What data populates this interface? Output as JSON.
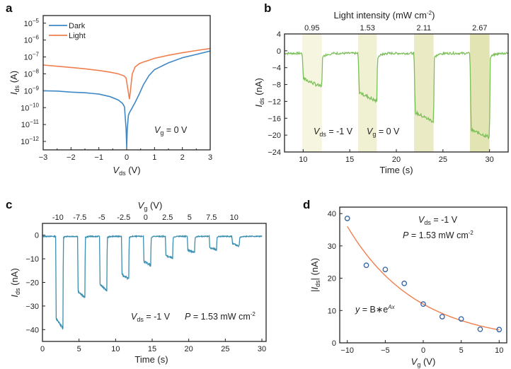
{
  "chart_data": [
    {
      "panel": "a",
      "type": "line",
      "xlabel": "V_ds (V)",
      "ylabel": "I_ds (A)",
      "yscale": "log",
      "xlim": [
        -3,
        3
      ],
      "ylim_exp": [
        -12.5,
        -4.55
      ],
      "xticks": [
        -3,
        -2,
        -1,
        0,
        1,
        2,
        3
      ],
      "yticks_exp": [
        -12,
        -11,
        -10,
        -9,
        -8,
        -7,
        -6,
        -5
      ],
      "legend": {
        "placement": "top-left",
        "entries": [
          "Dark",
          "Light"
        ]
      },
      "annotation": {
        "var": "V",
        "sub": "g",
        "rest": " = 0 V"
      },
      "series": [
        {
          "name": "Dark",
          "color": "#3f88c5",
          "x": [
            -3,
            -2.5,
            -2,
            -1.5,
            -1,
            -0.6,
            -0.3,
            -0.15,
            -0.08,
            -0.02,
            0,
            0.02,
            0.06,
            0.1,
            0.2,
            0.3,
            0.45,
            0.6,
            0.8,
            1,
            1.5,
            2,
            2.5,
            3
          ],
          "log10y": [
            -9.0,
            -9.02,
            -9.08,
            -9.12,
            -9.2,
            -9.35,
            -9.55,
            -9.75,
            -9.95,
            -11.3,
            -12.4,
            -11.3,
            -10.45,
            -10.3,
            -10.0,
            -9.7,
            -9.2,
            -8.65,
            -8.1,
            -7.75,
            -7.35,
            -7.05,
            -6.85,
            -6.65
          ]
        },
        {
          "name": "Light",
          "color": "#f07f4f",
          "x": [
            -3,
            -2.5,
            -2,
            -1.5,
            -1,
            -0.6,
            -0.3,
            -0.1,
            -0.02,
            0.04,
            0.1,
            0.14,
            0.2,
            0.3,
            0.45,
            0.6,
            0.8,
            1,
            1.5,
            2,
            2.5,
            3
          ],
          "log10y": [
            -7.48,
            -7.55,
            -7.62,
            -7.7,
            -7.8,
            -7.9,
            -8.0,
            -8.12,
            -8.25,
            -8.9,
            -9.5,
            -8.9,
            -8.0,
            -7.6,
            -7.4,
            -7.3,
            -7.2,
            -7.08,
            -6.9,
            -6.75,
            -6.62,
            -6.5
          ]
        }
      ]
    },
    {
      "panel": "b",
      "type": "line",
      "title": "Light intensity (mW cm⁻²)",
      "xlabel": "Time (s)",
      "ylabel": "I_ds (nA)",
      "xlim": [
        8,
        32
      ],
      "ylim": [
        -24,
        4
      ],
      "xticks": [
        10,
        15,
        20,
        25,
        30
      ],
      "yticks": [
        4,
        0,
        -4,
        -8,
        -12,
        -16,
        -20,
        -24
      ],
      "color": "#7cbf5a",
      "baseline": -0.6,
      "pulses": [
        {
          "intensity": "0.95",
          "t_on": 9.9,
          "t_off": 12.0,
          "start": -6.5,
          "end": -8.6,
          "shade": "#f6f5df"
        },
        {
          "intensity": "1.53",
          "t_on": 15.9,
          "t_off": 17.9,
          "start": -9.7,
          "end": -12.0,
          "shade": "#f0f0d2"
        },
        {
          "intensity": "2.11",
          "t_on": 21.9,
          "t_off": 24.0,
          "start": -14.5,
          "end": -16.8,
          "shade": "#eaebc4"
        },
        {
          "intensity": "2.67",
          "t_on": 27.9,
          "t_off": 30.0,
          "start": -18.7,
          "end": -20.5,
          "shade": "#e3e4b4"
        }
      ],
      "annotations": [
        {
          "var": "V",
          "sub": "ds",
          "rest": " = -1 V"
        },
        {
          "var": "V",
          "sub": "g",
          "rest": " = 0 V"
        }
      ]
    },
    {
      "panel": "c",
      "type": "line",
      "top_axis_label": "V_g (V)",
      "top_ticks": [
        "-10",
        "-7.5",
        "-5",
        "-2.5",
        "0",
        "2.5",
        "5",
        "7.5",
        "10"
      ],
      "xlabel": "Time (s)",
      "ylabel": "I_ds (nA)",
      "xlim": [
        0,
        30
      ],
      "ylim": [
        -45,
        5
      ],
      "xticks": [
        0,
        5,
        10,
        15,
        20,
        25,
        30
      ],
      "yticks": [
        0,
        -10,
        -20,
        -30,
        -40
      ],
      "color": "#3b8fb0",
      "baseline": -0.5,
      "pulses": [
        {
          "vg": "-10",
          "t_on": 1.8,
          "t_off": 2.8,
          "start": -35,
          "end": -39.5
        },
        {
          "vg": "-7.5",
          "t_on": 4.8,
          "t_off": 5.8,
          "start": -23.5,
          "end": -26.5
        },
        {
          "vg": "-5",
          "t_on": 7.8,
          "t_off": 8.8,
          "start": -20.5,
          "end": -23.5
        },
        {
          "vg": "-2.5",
          "t_on": 10.8,
          "t_off": 11.8,
          "start": -16.5,
          "end": -18.5
        },
        {
          "vg": "0",
          "t_on": 13.8,
          "t_off": 14.8,
          "start": -11,
          "end": -12.8
        },
        {
          "vg": "2.5",
          "t_on": 16.8,
          "t_off": 17.8,
          "start": -8.5,
          "end": -9.8
        },
        {
          "vg": "5",
          "t_on": 19.8,
          "t_off": 20.8,
          "start": -6.2,
          "end": -7.3
        },
        {
          "vg": "7.5",
          "t_on": 22.8,
          "t_off": 23.8,
          "start": -5.2,
          "end": -6.2
        },
        {
          "vg": "10",
          "t_on": 25.9,
          "t_off": 26.9,
          "start": -3.6,
          "end": -4.6
        }
      ],
      "annotations": [
        {
          "var": "V",
          "sub": "ds",
          "rest": " = -1 V"
        },
        {
          "var": "P",
          "rest": " = 1.53 mW cm",
          "sup": "-2"
        }
      ]
    },
    {
      "panel": "d",
      "type": "scatter",
      "xlabel": "V_g (V)",
      "ylabel": "|I_ds| (nA)",
      "xlim": [
        -11,
        11
      ],
      "ylim": [
        0,
        42
      ],
      "xticks": [
        -10,
        -5,
        0,
        5,
        10
      ],
      "yticks": [
        0,
        10,
        20,
        30,
        40
      ],
      "x": [
        -10,
        -7.5,
        -5,
        -2.5,
        0,
        2.5,
        5,
        7.5,
        10
      ],
      "y": [
        38.5,
        24.0,
        22.7,
        18.4,
        12.0,
        8.1,
        7.4,
        4.2,
        4.1
      ],
      "marker_color": "#2f5fa6",
      "fit": {
        "equation": "y = B*e^(Ax)",
        "B": 12.0,
        "A": -0.11,
        "color": "#f07f4f"
      },
      "annotations": [
        {
          "var": "V",
          "sub": "ds",
          "rest": " = -1 V"
        },
        {
          "var": "P",
          "rest": " = 1.53 mW cm",
          "sup": "-2"
        }
      ]
    }
  ],
  "labels": {
    "panel_a": "a",
    "panel_b": "b",
    "panel_c": "c",
    "panel_d": "d",
    "a_xlabel_var": "V",
    "a_xlabel_sub": "ds",
    "a_xlabel_unit": " (V)",
    "a_ylabel_var": "I",
    "a_ylabel_sub": "ds",
    "a_ylabel_unit": " (A)",
    "b_title": "Light intensity (mW cm",
    "b_title_sup": "-2",
    "b_title_end": ")",
    "b_xlabel": "Time (s)",
    "b_ylabel_var": "I",
    "b_ylabel_sub": "ds",
    "b_ylabel_unit": " (nA)",
    "c_top_var": "V",
    "c_top_sub": "g",
    "c_top_unit": " (V)",
    "c_xlabel": "Time (s)",
    "c_ylabel_var": "I",
    "c_ylabel_sub": "ds",
    "c_ylabel_unit": " (nA)",
    "d_xlabel_var": "V",
    "d_xlabel_sub": "g",
    "d_xlabel_unit": " (V)",
    "d_ylabel_pre": "|",
    "d_ylabel_var": "I",
    "d_ylabel_sub": "ds",
    "d_ylabel_unit": "| (nA)",
    "d_fit_pre": "y",
    "d_fit_mid": " = B∗e",
    "d_fit_sup": "Ax"
  }
}
